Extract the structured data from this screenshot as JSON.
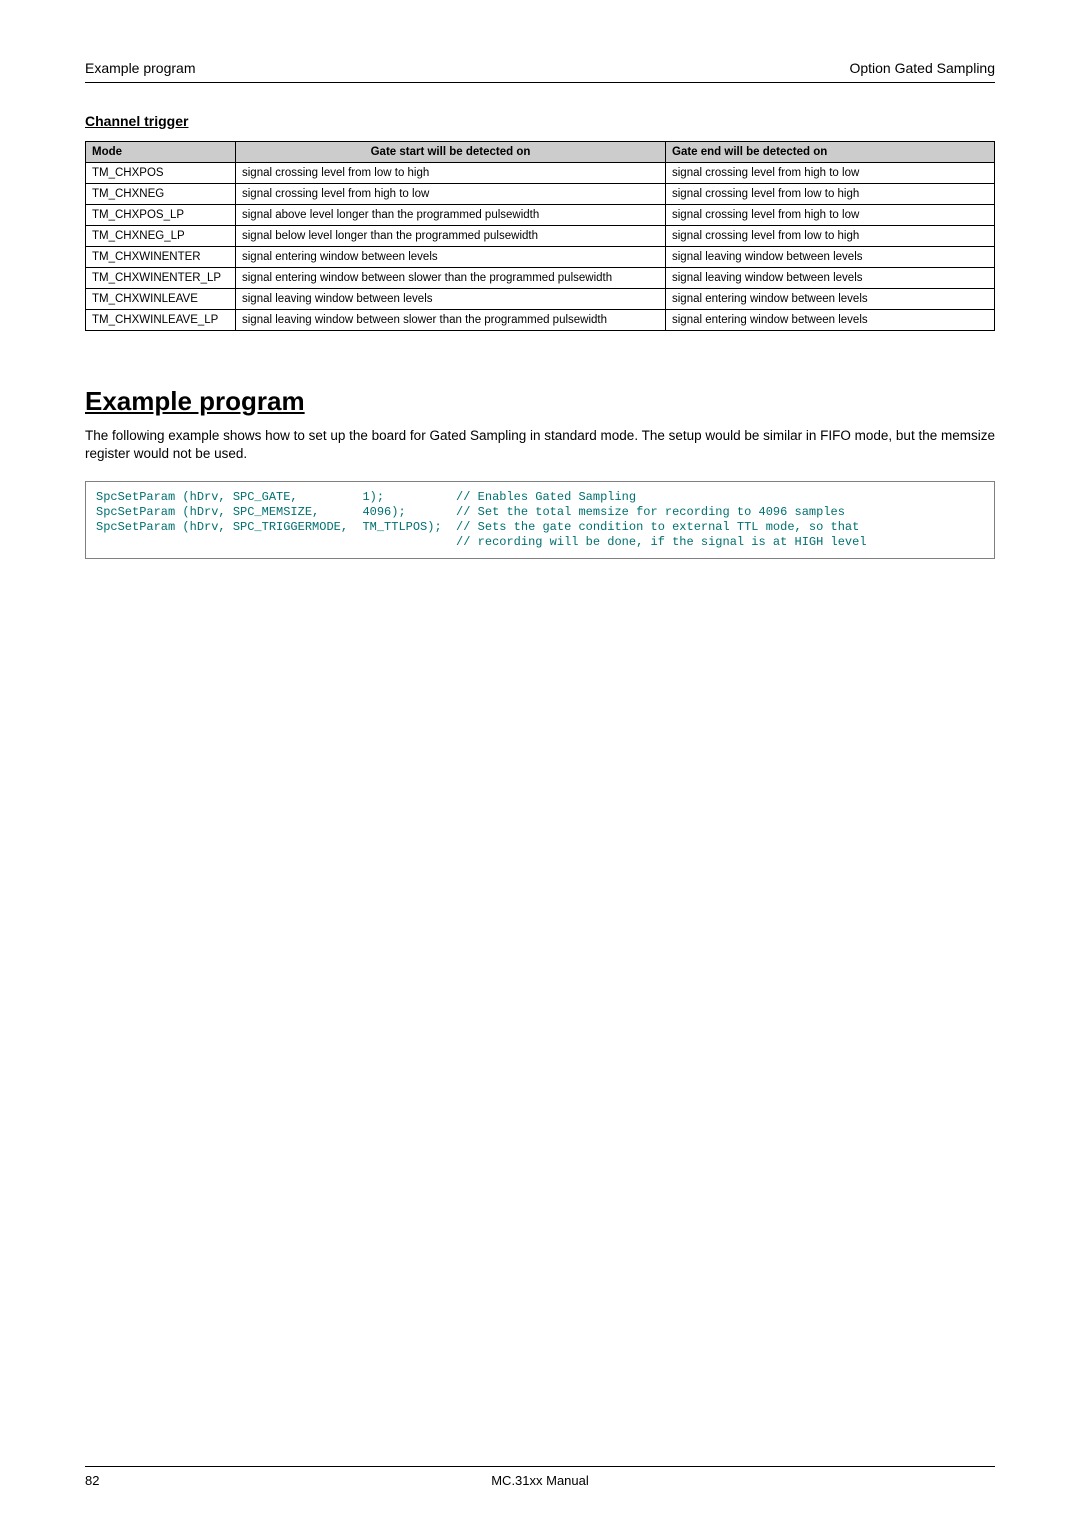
{
  "header": {
    "left": "Example program",
    "right": "Option Gated Sampling"
  },
  "subsection": {
    "title": "Channel trigger"
  },
  "table": {
    "headers": {
      "mode": "Mode",
      "gate_start": "Gate start will be detected on",
      "gate_end": "Gate end will be detected on"
    },
    "rows": [
      {
        "mode": "TM_CHXPOS",
        "start": "signal crossing level from low to high",
        "end": "signal crossing level from high to low"
      },
      {
        "mode": "TM_CHXNEG",
        "start": "signal crossing level from high to low",
        "end": "signal crossing level from low to high"
      },
      {
        "mode": "TM_CHXPOS_LP",
        "start": "signal above level longer than the programmed pulsewidth",
        "end": "signal crossing level from high to low"
      },
      {
        "mode": "TM_CHXNEG_LP",
        "start": "signal below level longer than the programmed pulsewidth",
        "end": "signal crossing level from low to high"
      },
      {
        "mode": "TM_CHXWINENTER",
        "start": "signal entering window between levels",
        "end": "signal leaving window between levels"
      },
      {
        "mode": "TM_CHXWINENTER_LP",
        "start": "signal entering window between slower than the programmed pulsewidth",
        "end": "signal leaving window between levels"
      },
      {
        "mode": "TM_CHXWINLEAVE",
        "start": "signal leaving window between levels",
        "end": "signal entering window between levels"
      },
      {
        "mode": "TM_CHXWINLEAVE_LP",
        "start": "signal leaving window between slower than the programmed pulsewidth",
        "end": "signal entering window between levels"
      }
    ]
  },
  "section": {
    "title": "Example program",
    "intro": "The following example shows how to set up the board for Gated Sampling in standard mode. The setup would be similar in FIFO mode, but the memsize register would not be used."
  },
  "code": {
    "content": "SpcSetParam (hDrv, SPC_GATE,         1);          // Enables Gated Sampling\nSpcSetParam (hDrv, SPC_MEMSIZE,      4096);       // Set the total memsize for recording to 4096 samples\nSpcSetParam (hDrv, SPC_TRIGGERMODE,  TM_TTLPOS);  // Sets the gate condition to external TTL mode, so that\n                                                  // recording will be done, if the signal is at HIGH level"
  },
  "footer": {
    "page": "82",
    "center": "MC.31xx Manual"
  },
  "styling": {
    "header_bg": "#cccccc",
    "border_color": "#000000",
    "code_color": "#007070",
    "code_border": "#808080",
    "body_font": "Arial",
    "code_font": "Courier New",
    "title_fontsize": 26,
    "body_fontsize": 13.5,
    "table_fontsize": 11.5,
    "code_fontsize": 12
  }
}
